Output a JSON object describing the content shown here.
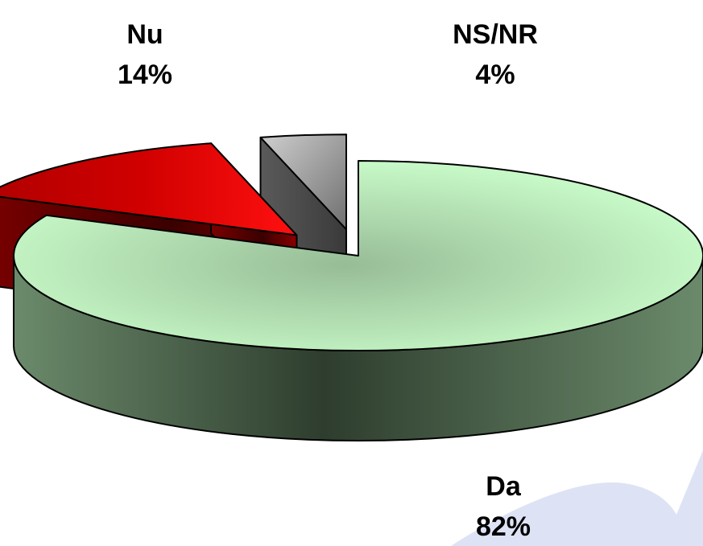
{
  "chart_data": {
    "type": "pie",
    "style": "3d-exploded",
    "slices": [
      {
        "name": "Da",
        "value": 82,
        "label": "Da",
        "pct_label": "82%",
        "color": "#ccffcc",
        "side_color": "#5f7a5f"
      },
      {
        "name": "Nu",
        "value": 14,
        "label": "Nu",
        "pct_label": "14%",
        "color": "#ff0000",
        "side_color": "#7a0000"
      },
      {
        "name": "NS/NR",
        "value": 4,
        "label": "NS/NR",
        "pct_label": "4%",
        "color": "#c0c0c0",
        "side_color": "#555555"
      }
    ],
    "legend": "none",
    "decoration_color": "#dde3f4"
  }
}
